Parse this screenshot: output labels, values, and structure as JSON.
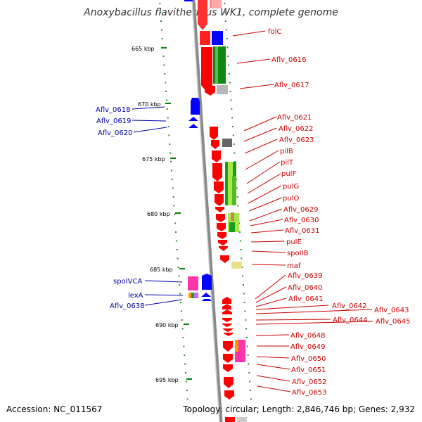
{
  "title": "Anoxybacillus flavithermus WK1, complete genome",
  "footer": {
    "accession": "Accession: NC_011567",
    "stats": "Topology: circular; Length: 2,846,746 bp; Genes: 2,932"
  },
  "colors": {
    "forward_gene": "#ff0000",
    "reverse_gene": "#0000ff",
    "label_right": "#cc0000",
    "label_left": "#0000aa",
    "backbone": "#888888",
    "tick": "#008000"
  },
  "scale_ticks": [
    "665 kbp",
    "670 kbp",
    "675 kbp",
    "680 kbp",
    "685 kbp",
    "690 kbp",
    "695 kbp"
  ],
  "right_labels": [
    "folC",
    "Aflv_0616",
    "Aflv_0617",
    "Aflv_0621",
    "Aflv_0622",
    "Aflv_0623",
    "pilB",
    "pilT",
    "pulF",
    "pulG",
    "pulO",
    "Aflv_0629",
    "Aflv_0630",
    "Aflv_0631",
    "pulE",
    "spoIIB",
    "maf",
    "Aflv_0639",
    "Aflv_0640",
    "Aflv_0641",
    "Aflv_0642",
    "Aflv_0643",
    "Aflv_0644",
    "Aflv_0645",
    "Aflv_0648",
    "Aflv_0649",
    "Aflv_0650",
    "Aflv_0651",
    "Aflv_0652",
    "Aflv_0653"
  ],
  "left_labels": [
    "Aflv_0618",
    "Aflv_0619",
    "Aflv_0620",
    "spoIVCA",
    "lexA",
    "Aflv_0638"
  ]
}
